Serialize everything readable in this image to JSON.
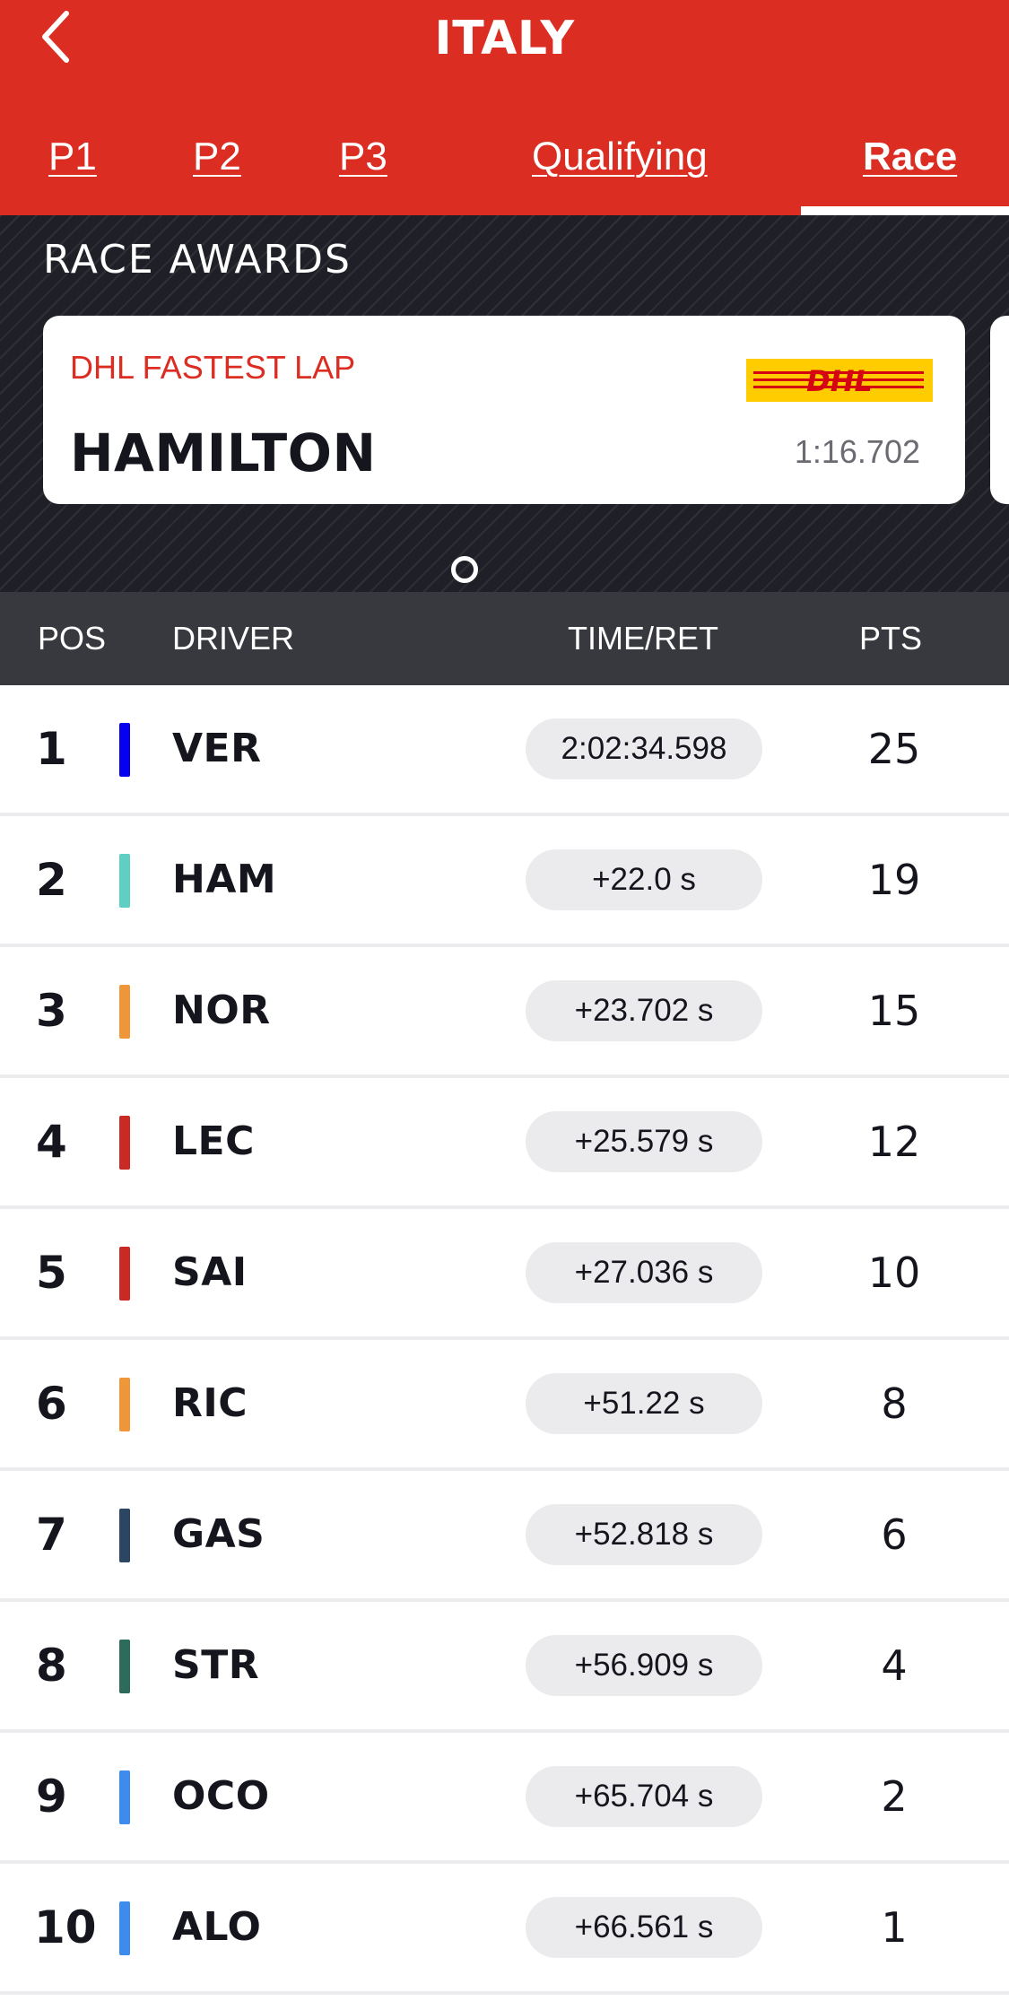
{
  "header": {
    "title": "ITALY",
    "back_icon": "chevron-left-icon",
    "background_color": "#dc2d22"
  },
  "tabs": [
    {
      "label": "P1",
      "active": false
    },
    {
      "label": "P2",
      "active": false
    },
    {
      "label": "P3",
      "active": false
    },
    {
      "label": "Qualifying",
      "active": false
    },
    {
      "label": "Race",
      "active": true
    }
  ],
  "awards": {
    "title": "RACE AWARDS",
    "card": {
      "label": "DHL FASTEST LAP",
      "driver": "HAMILTON",
      "time": "1:16.702",
      "sponsor_logo_text": "DHL",
      "sponsor_colors": {
        "yellow": "#ffcc00",
        "red": "#d40511"
      }
    }
  },
  "table": {
    "headers": {
      "pos": "POS",
      "driver": "DRIVER",
      "time": "TIME/RET",
      "pts": "PTS"
    },
    "rows": [
      {
        "pos": "1",
        "driver": "VER",
        "time": "2:02:34.598",
        "pts": "25",
        "team_color": "#0600ef"
      },
      {
        "pos": "2",
        "driver": "HAM",
        "time": "+22.0 s",
        "pts": "19",
        "team_color": "#5fcfc3"
      },
      {
        "pos": "3",
        "driver": "NOR",
        "time": "+23.702 s",
        "pts": "15",
        "team_color": "#f0963a"
      },
      {
        "pos": "4",
        "driver": "LEC",
        "time": "+25.579 s",
        "pts": "12",
        "team_color": "#c92a23"
      },
      {
        "pos": "5",
        "driver": "SAI",
        "time": "+27.036 s",
        "pts": "10",
        "team_color": "#c92a23"
      },
      {
        "pos": "6",
        "driver": "RIC",
        "time": "+51.22 s",
        "pts": "8",
        "team_color": "#f0963a"
      },
      {
        "pos": "7",
        "driver": "GAS",
        "time": "+52.818 s",
        "pts": "6",
        "team_color": "#2b4562"
      },
      {
        "pos": "8",
        "driver": "STR",
        "time": "+56.909 s",
        "pts": "4",
        "team_color": "#2d6b5a"
      },
      {
        "pos": "9",
        "driver": "OCO",
        "time": "+65.704 s",
        "pts": "2",
        "team_color": "#3d8bec"
      },
      {
        "pos": "10",
        "driver": "ALO",
        "time": "+66.561 s",
        "pts": "1",
        "team_color": "#3d8bec"
      }
    ]
  }
}
